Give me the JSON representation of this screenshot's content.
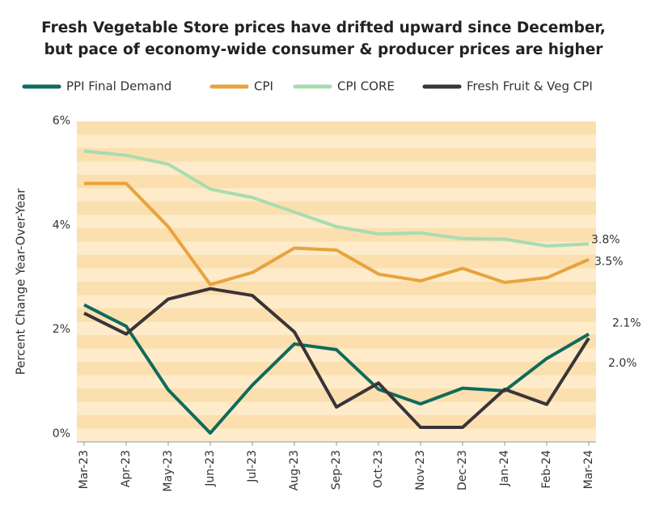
{
  "chart_data": {
    "type": "line",
    "title": [
      "Fresh Vegetable Store prices have drifted upward since December,",
      "but pace of economy-wide consumer & producer prices are higher"
    ],
    "y_label": "Percent Change Year-Over-Year",
    "categories": [
      "Mar-23",
      "Apr-23",
      "May-23",
      "Jun-23",
      "Jul-23",
      "Aug-23",
      "Sep-23",
      "Oct-23",
      "Nov-23",
      "Dec-23",
      "Jan-24",
      "Feb-24",
      "Mar-24"
    ],
    "series": [
      {
        "name": "PPI Final Demand",
        "color": "#0f6b5c",
        "values": [
          2.63,
          2.22,
          1.0,
          0.17,
          1.09,
          1.88,
          1.77,
          1.01,
          0.73,
          1.03,
          0.98,
          1.6,
          2.07
        ],
        "value_labels": [
          null,
          null,
          null,
          null,
          null,
          null,
          null,
          null,
          null,
          null,
          null,
          null,
          "2.1%"
        ]
      },
      {
        "name": "CPI",
        "color": "#e8a33d",
        "values": [
          4.96,
          4.96,
          4.13,
          3.02,
          3.25,
          3.72,
          3.68,
          3.22,
          3.09,
          3.33,
          3.06,
          3.15,
          3.5
        ],
        "value_labels": [
          null,
          null,
          null,
          null,
          null,
          null,
          null,
          null,
          null,
          null,
          null,
          null,
          "3.5%"
        ]
      },
      {
        "name": "CPI CORE",
        "color": "#a8dcb0",
        "values": [
          5.58,
          5.5,
          5.33,
          4.85,
          4.69,
          4.41,
          4.13,
          3.99,
          4.01,
          3.9,
          3.89,
          3.76,
          3.8
        ],
        "value_labels": [
          null,
          null,
          null,
          null,
          null,
          null,
          null,
          null,
          null,
          null,
          null,
          null,
          "3.8%"
        ]
      },
      {
        "name": "Fresh Fruit & Veg CPI",
        "color": "#3a3438",
        "values": [
          2.47,
          2.07,
          2.74,
          2.94,
          2.81,
          2.11,
          0.67,
          1.13,
          0.28,
          0.28,
          1.01,
          0.72,
          1.99
        ],
        "value_labels": [
          null,
          null,
          null,
          null,
          null,
          null,
          null,
          null,
          null,
          null,
          null,
          null,
          "2.0%"
        ]
      }
    ],
    "ylim": [
      0,
      6.15
    ],
    "yticks": [
      {
        "value": 0,
        "label": "0%"
      },
      {
        "value": 2,
        "label": "2%"
      },
      {
        "value": 4,
        "label": "4%"
      },
      {
        "value": 6,
        "label": "6%"
      }
    ]
  }
}
